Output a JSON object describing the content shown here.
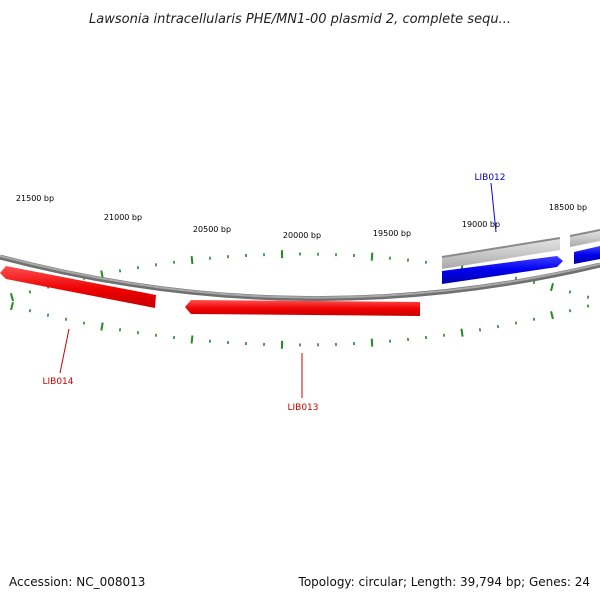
{
  "title": "Lawsonia intracellularis PHE/MN1-00 plasmid 2, complete sequ...",
  "footer": {
    "accession": "Accession: NC_008013",
    "summary": "Topology: circular; Length: 39,794 bp; Genes: 24"
  },
  "colors": {
    "forward_strand": "#0000ee",
    "reverse_strand": "#ee0000",
    "rna_feature": "#c0c0c0",
    "ticks": "#228b22",
    "backbone": "#888888"
  },
  "scale_labels": [
    "21500 bp",
    "21000 bp",
    "20500 bp",
    "20000 bp",
    "19500 bp",
    "19000 bp",
    "18500 bp"
  ],
  "genes": [
    {
      "name": "LIB012",
      "strand": "forward",
      "color": "#0000ee"
    },
    {
      "name": "LIB013",
      "strand": "reverse",
      "color": "#cc0000"
    },
    {
      "name": "LIB014",
      "strand": "reverse",
      "color": "#cc0000"
    }
  ]
}
